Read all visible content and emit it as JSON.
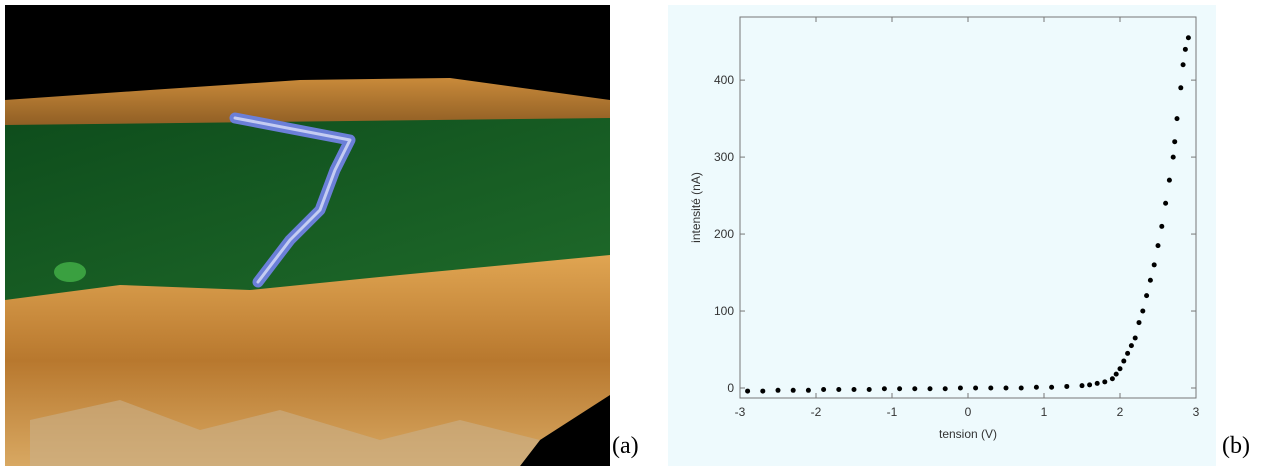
{
  "panels": {
    "a": "(a)",
    "b": "(b)"
  },
  "chart_data": {
    "type": "scatter",
    "x_label": "tension (V)",
    "y_label": "intensité (nA)",
    "x": [
      -2.9,
      -2.7,
      -2.5,
      -2.3,
      -2.1,
      -1.9,
      -1.7,
      -1.5,
      -1.3,
      -1.1,
      -0.9,
      -0.7,
      -0.5,
      -0.3,
      -0.1,
      0.1,
      0.3,
      0.5,
      0.7,
      0.9,
      1.1,
      1.3,
      1.5,
      1.6,
      1.7,
      1.8,
      1.9,
      1.95,
      2.0,
      2.05,
      2.1,
      2.15,
      2.2,
      2.25,
      2.3,
      2.35,
      2.4,
      2.45,
      2.5,
      2.55,
      2.6,
      2.65,
      2.7,
      2.72,
      2.75,
      2.8,
      2.83,
      2.86,
      2.9
    ],
    "values": [
      -4,
      -4,
      -3,
      -3,
      -3,
      -2,
      -2,
      -2,
      -2,
      -1,
      -1,
      -1,
      -1,
      -1,
      0,
      0,
      0,
      0,
      0,
      1,
      1,
      2,
      3,
      4,
      6,
      8,
      12,
      18,
      25,
      35,
      45,
      55,
      65,
      85,
      100,
      120,
      140,
      160,
      185,
      210,
      240,
      270,
      300,
      320,
      350,
      390,
      420,
      440,
      455
    ],
    "color": "#000000",
    "xlim": [
      -3,
      3
    ],
    "xticks": [
      -3,
      -2,
      -1,
      0,
      1,
      2,
      3
    ],
    "ylim": [
      -13,
      482
    ],
    "yticks": [
      0,
      100,
      200,
      300,
      400
    ],
    "grid": false
  }
}
